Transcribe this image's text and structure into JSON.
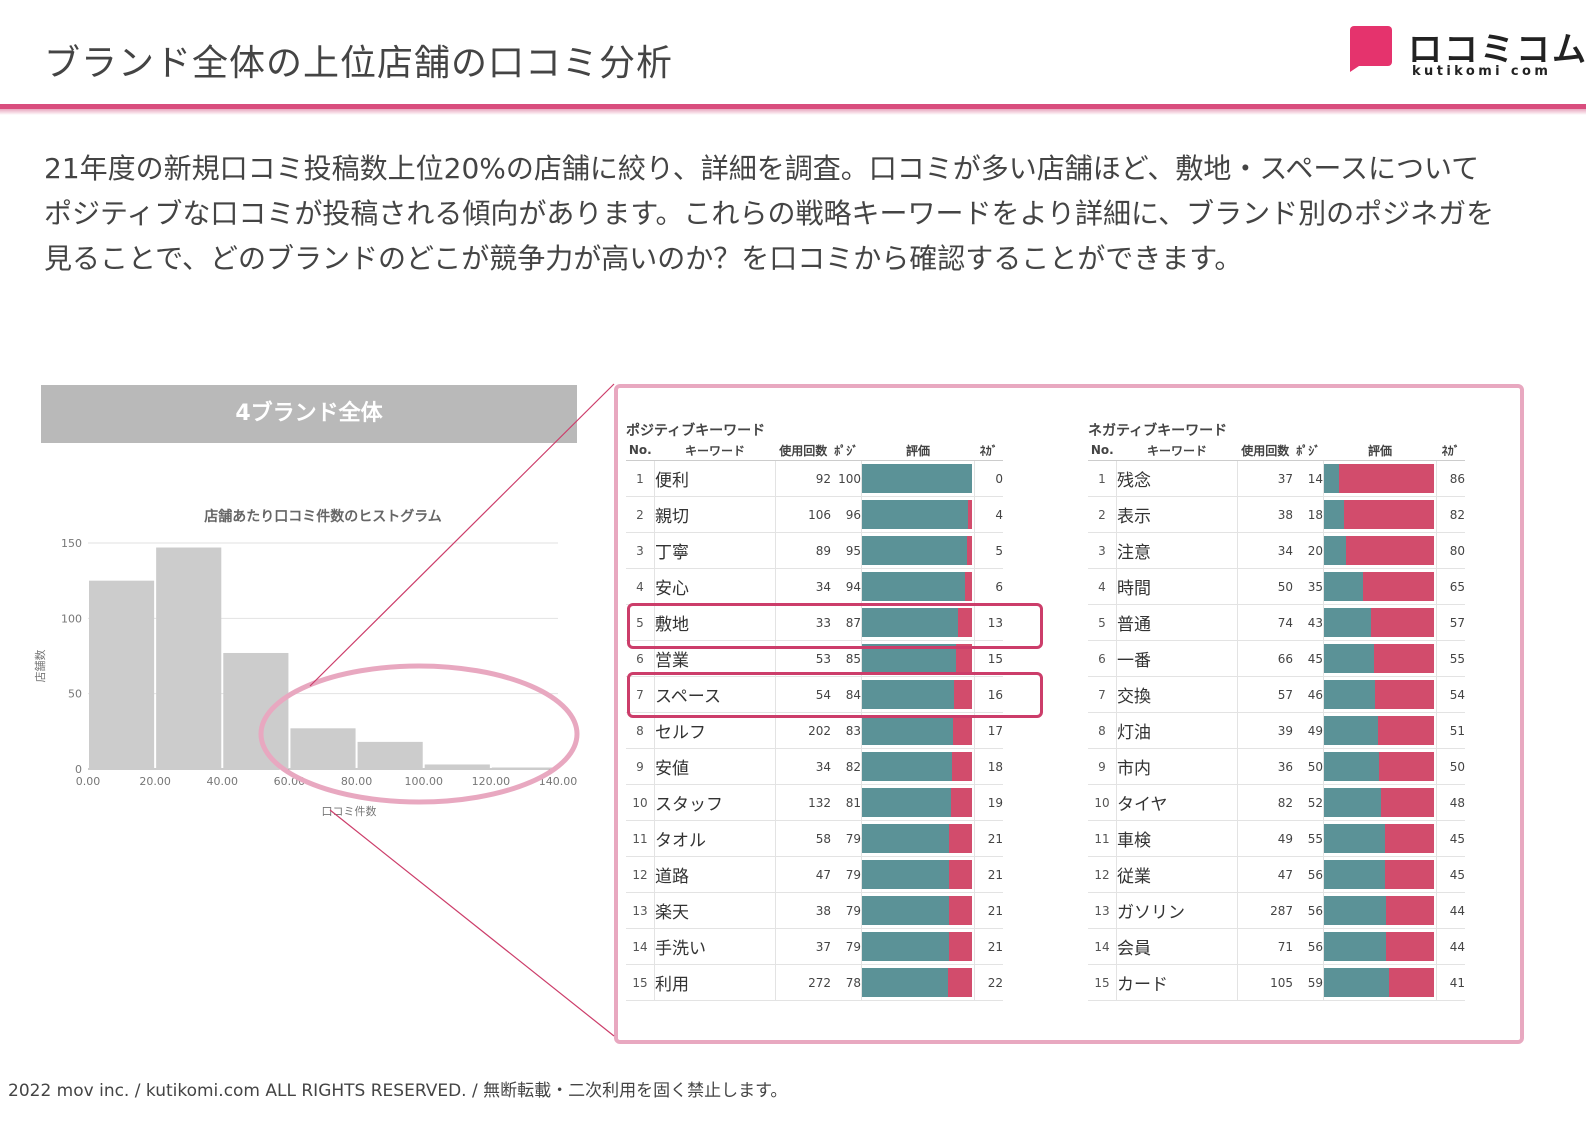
{
  "header": {
    "title": "ブランド全体の上位店舗の口コミ分析",
    "logo_text": "ロコミコム",
    "logo_sub": "kutikomi com",
    "accent_color": "#d94d7e"
  },
  "description": "21年度の新規口コミ投稿数上位20%の店舗に絞り、詳細を調査。口コミが多い店舗ほど、敷地・スペースについてポジティブな口コミが投稿される傾向があります。これらの戦略キーワードをより詳細に、ブランド別のポジネガを見ることで、どのブランドのどこが競争力が高いのか？を口コミから確認することができます。",
  "panel": {
    "title": "4ブランド全体"
  },
  "chart_data": {
    "type": "bar",
    "title": "店舗あたり口コミ件数のヒストグラム",
    "xlabel": "口コミ件数",
    "ylabel": "店舗数",
    "bin_edges": [
      0,
      20,
      40,
      60,
      80,
      100,
      120,
      140
    ],
    "x_tick_labels": [
      "0.00",
      "20.00",
      "40.00",
      "60.00",
      "80.00",
      "100.00",
      "120.00",
      "140.00"
    ],
    "values": [
      125,
      147,
      77,
      27,
      18,
      3,
      1
    ],
    "y_ticks": [
      0,
      50,
      100,
      150
    ],
    "ylim": [
      0,
      150
    ],
    "grid": true,
    "bar_color": "#cccccc",
    "highlight_color": "#e8a8c0"
  },
  "tables": {
    "positive": {
      "title": "ポジティブキーワード",
      "headers": {
        "no": "No.",
        "word": "キーワード",
        "count": "使用回数",
        "pos": "ﾎﾟｼﾞ",
        "rating": "評価",
        "neg": "ﾈｶﾞ"
      },
      "rows": [
        {
          "no": "1",
          "word": "便利",
          "count": "92",
          "pos": "100",
          "neg": "0"
        },
        {
          "no": "2",
          "word": "親切",
          "count": "106",
          "pos": "96",
          "neg": "4"
        },
        {
          "no": "3",
          "word": "丁寧",
          "count": "89",
          "pos": "95",
          "neg": "5"
        },
        {
          "no": "4",
          "word": "安心",
          "count": "34",
          "pos": "94",
          "neg": "6"
        },
        {
          "no": "5",
          "word": "敷地",
          "count": "33",
          "pos": "87",
          "neg": "13"
        },
        {
          "no": "6",
          "word": "営業",
          "count": "53",
          "pos": "85",
          "neg": "15"
        },
        {
          "no": "7",
          "word": "スペース",
          "count": "54",
          "pos": "84",
          "neg": "16"
        },
        {
          "no": "8",
          "word": "セルフ",
          "count": "202",
          "pos": "83",
          "neg": "17"
        },
        {
          "no": "9",
          "word": "安値",
          "count": "34",
          "pos": "82",
          "neg": "18"
        },
        {
          "no": "10",
          "word": "スタッフ",
          "count": "132",
          "pos": "81",
          "neg": "19"
        },
        {
          "no": "11",
          "word": "タオル",
          "count": "58",
          "pos": "79",
          "neg": "21"
        },
        {
          "no": "12",
          "word": "道路",
          "count": "47",
          "pos": "79",
          "neg": "21"
        },
        {
          "no": "13",
          "word": "楽天",
          "count": "38",
          "pos": "79",
          "neg": "21"
        },
        {
          "no": "14",
          "word": "手洗い",
          "count": "37",
          "pos": "79",
          "neg": "21"
        },
        {
          "no": "15",
          "word": "利用",
          "count": "272",
          "pos": "78",
          "neg": "22"
        }
      ]
    },
    "negative": {
      "title": "ネガティブキーワード",
      "headers": {
        "no": "No.",
        "word": "キーワード",
        "count": "使用回数",
        "pos": "ﾎﾟｼﾞ",
        "rating": "評価",
        "neg": "ﾈｶﾞ"
      },
      "rows": [
        {
          "no": "1",
          "word": "残念",
          "count": "37",
          "pos": "14",
          "neg": "86"
        },
        {
          "no": "2",
          "word": "表示",
          "count": "38",
          "pos": "18",
          "neg": "82"
        },
        {
          "no": "3",
          "word": "注意",
          "count": "34",
          "pos": "20",
          "neg": "80"
        },
        {
          "no": "4",
          "word": "時間",
          "count": "50",
          "pos": "35",
          "neg": "65"
        },
        {
          "no": "5",
          "word": "普通",
          "count": "74",
          "pos": "43",
          "neg": "57"
        },
        {
          "no": "6",
          "word": "一番",
          "count": "66",
          "pos": "45",
          "neg": "55"
        },
        {
          "no": "7",
          "word": "交換",
          "count": "57",
          "pos": "46",
          "neg": "54"
        },
        {
          "no": "8",
          "word": "灯油",
          "count": "39",
          "pos": "49",
          "neg": "51"
        },
        {
          "no": "9",
          "word": "市内",
          "count": "36",
          "pos": "50",
          "neg": "50"
        },
        {
          "no": "10",
          "word": "タイヤ",
          "count": "82",
          "pos": "52",
          "neg": "48"
        },
        {
          "no": "11",
          "word": "車検",
          "count": "49",
          "pos": "55",
          "neg": "45"
        },
        {
          "no": "12",
          "word": "従業",
          "count": "47",
          "pos": "56",
          "neg": "45"
        },
        {
          "no": "13",
          "word": "ガソリン",
          "count": "287",
          "pos": "56",
          "neg": "44"
        },
        {
          "no": "14",
          "word": "会員",
          "count": "71",
          "pos": "56",
          "neg": "44"
        },
        {
          "no": "15",
          "word": "カード",
          "count": "105",
          "pos": "59",
          "neg": "41"
        }
      ]
    },
    "pos_color": "#5b9297",
    "neg_color": "#d24c6c"
  },
  "footer": "2022 mov inc. / kutikomi.com ALL RIGHTS RESERVED. / 無断転載・二次利用を固く禁止します。"
}
